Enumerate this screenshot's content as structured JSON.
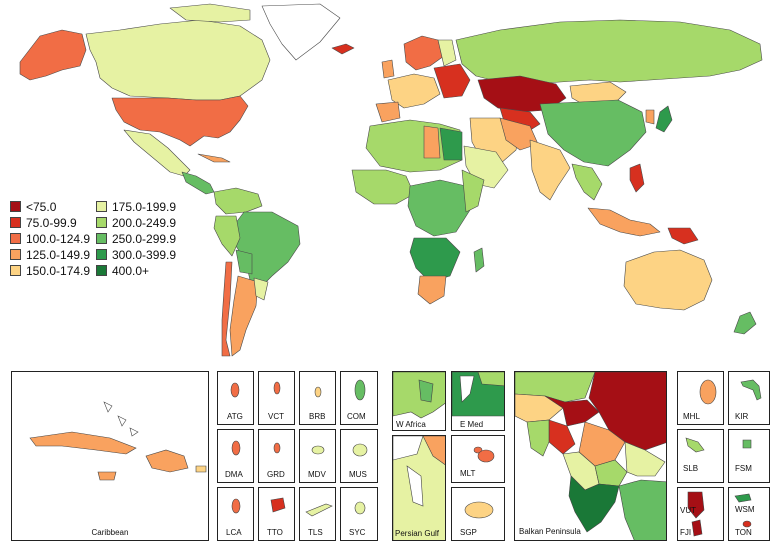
{
  "colors": {
    "lt75": "#a50f15",
    "c75_99": "#d7301f",
    "c100_124": "#f16d45",
    "c125_149": "#f9a25f",
    "c150_174": "#fdd384",
    "c175_199": "#e6f2a3",
    "c200_249": "#a6d96a",
    "c250_299": "#66bd63",
    "c300_399": "#2e9a4c",
    "c400": "#1a7837"
  },
  "legend": [
    {
      "label": "<75.0",
      "color": "#a50f15"
    },
    {
      "label": "75.0-99.9",
      "color": "#d7301f"
    },
    {
      "label": "100.0-124.9",
      "color": "#f16d45"
    },
    {
      "label": "125.0-149.9",
      "color": "#f9a25f"
    },
    {
      "label": "150.0-174.9",
      "color": "#fdd384"
    },
    {
      "label": "175.0-199.9",
      "color": "#e6f2a3"
    },
    {
      "label": "200.0-249.9",
      "color": "#a6d96a"
    },
    {
      "label": "250.0-299.9",
      "color": "#66bd63"
    },
    {
      "label": "300.0-399.9",
      "color": "#2e9a4c"
    },
    {
      "label": "400.0+",
      "color": "#1a7837"
    }
  ],
  "insets": {
    "caribbean": "Caribbean",
    "atg": "ATG",
    "vct": "VCT",
    "brb": "BRB",
    "com": "COM",
    "dma": "DMA",
    "grd": "GRD",
    "mdv": "MDV",
    "mus": "MUS",
    "lca": "LCA",
    "tto": "TTO",
    "tls": "TLS",
    "syc": "SYC",
    "w_africa": "W Africa",
    "e_med": "E Med",
    "mlt": "MLT",
    "persian_gulf": "Persian Gulf",
    "sgp": "SGP",
    "balkan": "Balkan Peninsula",
    "mhl": "MHL",
    "kir": "KIR",
    "slb": "SLB",
    "fsm": "FSM",
    "vut": "VUT",
    "wsm": "WSM",
    "fji": "FJI",
    "ton": "TON"
  }
}
